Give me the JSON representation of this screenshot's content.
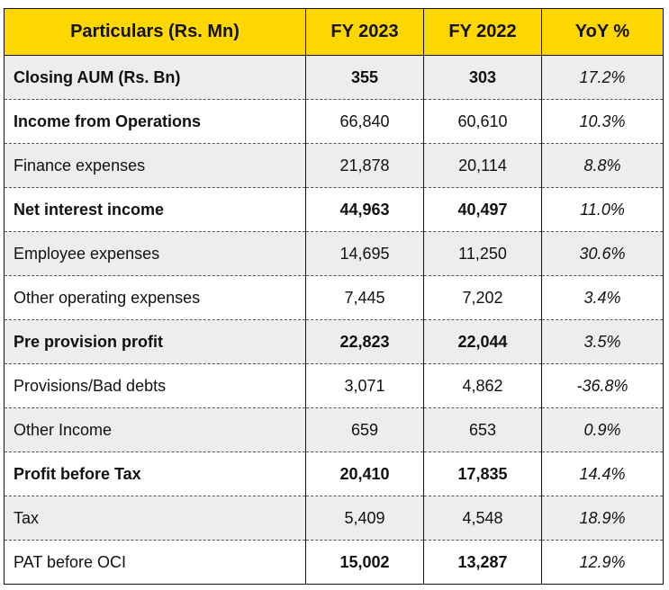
{
  "table": {
    "headers": [
      "Particulars (Rs. Mn)",
      "FY 2023",
      "FY 2022",
      "YoY %"
    ],
    "rows": [
      {
        "label": "Closing AUM (Rs. Bn)",
        "fy2023": "355",
        "fy2022": "303",
        "yoy": "17.2%"
      },
      {
        "label": "Income from Operations",
        "fy2023": "66,840",
        "fy2022": "60,610",
        "yoy": "10.3%"
      },
      {
        "label": "Finance expenses",
        "fy2023": "21,878",
        "fy2022": "20,114",
        "yoy": "8.8%"
      },
      {
        "label": "Net interest income",
        "fy2023": "44,963",
        "fy2022": "40,497",
        "yoy": "11.0%"
      },
      {
        "label": "Employee expenses",
        "fy2023": "14,695",
        "fy2022": "11,250",
        "yoy": "30.6%"
      },
      {
        "label": "Other operating expenses",
        "fy2023": "7,445",
        "fy2022": "7,202",
        "yoy": "3.4%"
      },
      {
        "label": "Pre provision profit",
        "fy2023": "22,823",
        "fy2022": "22,044",
        "yoy": "3.5%"
      },
      {
        "label": "Provisions/Bad debts",
        "fy2023": "3,071",
        "fy2022": "4,862",
        "yoy": "-36.8%"
      },
      {
        "label": "Other Income",
        "fy2023": "659",
        "fy2022": "653",
        "yoy": "0.9%"
      },
      {
        "label": "Profit before Tax",
        "fy2023": "20,410",
        "fy2022": "17,835",
        "yoy": "14.4%"
      },
      {
        "label": "Tax",
        "fy2023": "5,409",
        "fy2022": "4,548",
        "yoy": "18.9%"
      },
      {
        "label": "PAT before OCI",
        "fy2023": "15,002",
        "fy2022": "13,287",
        "yoy": "12.9%"
      }
    ]
  },
  "colors": {
    "header_bg": "#ffd700",
    "shaded_row_bg": "#ededed",
    "plain_row_bg": "#ffffff"
  }
}
